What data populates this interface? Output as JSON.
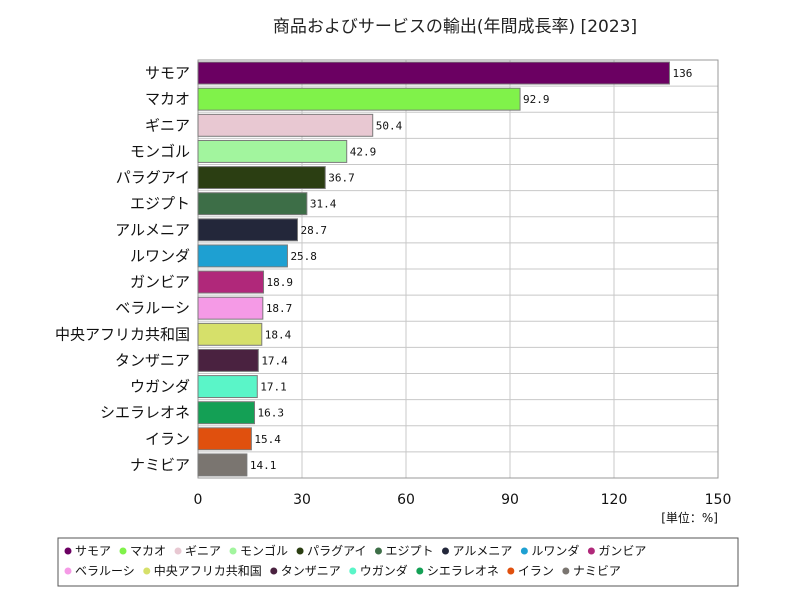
{
  "chart_data": {
    "type": "bar",
    "orientation": "horizontal",
    "title": "商品およびサービスの輸出(年間成長率) [2023]",
    "unit_label": "[単位：%]",
    "xlim": [
      0,
      150
    ],
    "xticks": [
      0,
      30,
      60,
      90,
      120,
      150
    ],
    "grid": true,
    "legend_position": "bottom",
    "categories": [
      "サモア",
      "マカオ",
      "ギニア",
      "モンゴル",
      "パラグアイ",
      "エジプト",
      "アルメニア",
      "ルワンダ",
      "ガンビア",
      "ベラルーシ",
      "中央アフリカ共和国",
      "タンザニア",
      "ウガンダ",
      "シエラレオネ",
      "イラン",
      "ナミビア"
    ],
    "values": [
      136,
      92.9,
      50.4,
      42.9,
      36.7,
      31.4,
      28.7,
      25.8,
      18.9,
      18.7,
      18.4,
      17.4,
      17.1,
      16.3,
      15.4,
      14.1
    ],
    "value_labels": [
      "136",
      "92.9",
      "50.4",
      "42.9",
      "36.7",
      "31.4",
      "28.7",
      "25.8",
      "18.9",
      "18.7",
      "18.4",
      "17.4",
      "17.1",
      "16.3",
      "15.4",
      "14.1"
    ],
    "colors": [
      "#6b0062",
      "#80f24a",
      "#e8c8d2",
      "#a2f59e",
      "#2b3e12",
      "#3d6e47",
      "#23273a",
      "#1ea0d2",
      "#b0287a",
      "#f59ae6",
      "#d6e06a",
      "#4a2240",
      "#5af5c8",
      "#14a055",
      "#e0500e",
      "#7a7570"
    ]
  }
}
